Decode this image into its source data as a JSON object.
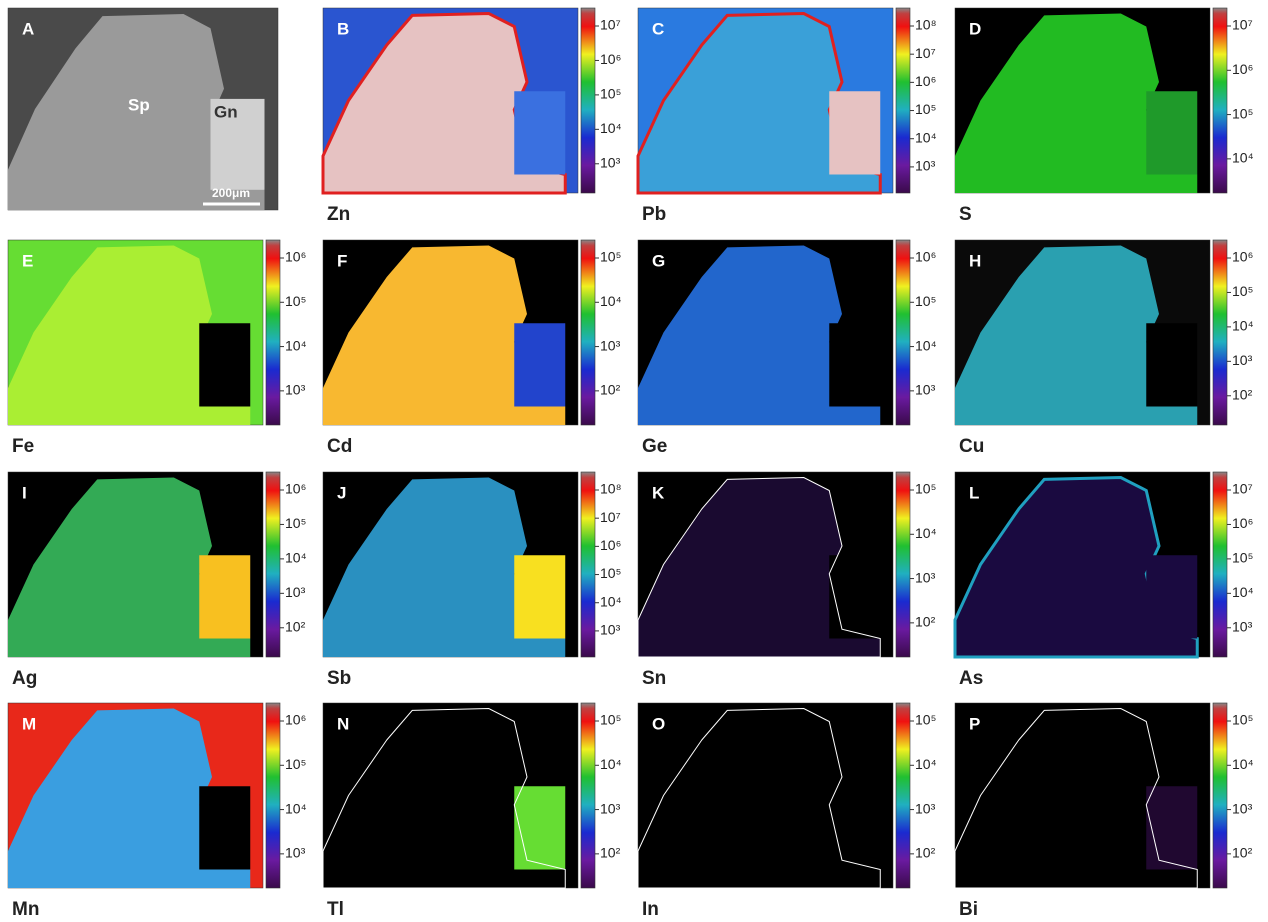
{
  "panels": [
    {
      "letter": "A",
      "labels": [
        "Sp",
        "Gn"
      ],
      "scale_bar": "200μm"
    },
    {
      "letter": "B",
      "element": "Zn",
      "colorbar_ticks": [
        "10⁷",
        "10⁶",
        "10⁵",
        "10⁴",
        "10³"
      ]
    },
    {
      "letter": "C",
      "element": "Pb",
      "colorbar_ticks": [
        "10⁸",
        "10⁷",
        "10⁶",
        "10⁵",
        "10⁴",
        "10³"
      ]
    },
    {
      "letter": "D",
      "element": "S",
      "colorbar_ticks": [
        "10⁷",
        "10⁶",
        "10⁵",
        "10⁴"
      ]
    },
    {
      "letter": "E",
      "element": "Fe",
      "colorbar_ticks": [
        "10⁶",
        "10⁵",
        "10⁴",
        "10³"
      ]
    },
    {
      "letter": "F",
      "element": "Cd",
      "colorbar_ticks": [
        "10⁵",
        "10⁴",
        "10³",
        "10²"
      ]
    },
    {
      "letter": "G",
      "element": "Ge",
      "colorbar_ticks": [
        "10⁶",
        "10⁵",
        "10⁴",
        "10³"
      ]
    },
    {
      "letter": "H",
      "element": "Cu",
      "colorbar_ticks": [
        "10⁶",
        "10⁵",
        "10⁴",
        "10³",
        "10²"
      ]
    },
    {
      "letter": "I",
      "element": "Ag",
      "colorbar_ticks": [
        "10⁶",
        "10⁵",
        "10⁴",
        "10³",
        "10²"
      ]
    },
    {
      "letter": "J",
      "element": "Sb",
      "colorbar_ticks": [
        "10⁸",
        "10⁷",
        "10⁶",
        "10⁵",
        "10⁴",
        "10³"
      ]
    },
    {
      "letter": "K",
      "element": "Sn",
      "colorbar_ticks": [
        "10⁵",
        "10⁴",
        "10³",
        "10²"
      ]
    },
    {
      "letter": "L",
      "element": "As",
      "colorbar_ticks": [
        "10⁷",
        "10⁶",
        "10⁵",
        "10⁴",
        "10³"
      ]
    },
    {
      "letter": "M",
      "element": "Mn",
      "colorbar_ticks": [
        "10⁶",
        "10⁵",
        "10⁴",
        "10³"
      ]
    },
    {
      "letter": "N",
      "element": "Tl",
      "colorbar_ticks": [
        "10⁵",
        "10⁴",
        "10³",
        "10²"
      ]
    },
    {
      "letter": "O",
      "element": "In",
      "colorbar_ticks": [
        "10⁵",
        "10⁴",
        "10³",
        "10²"
      ]
    },
    {
      "letter": "P",
      "element": "Bi",
      "colorbar_ticks": [
        "10⁵",
        "10⁴",
        "10³",
        "10²"
      ]
    }
  ]
}
